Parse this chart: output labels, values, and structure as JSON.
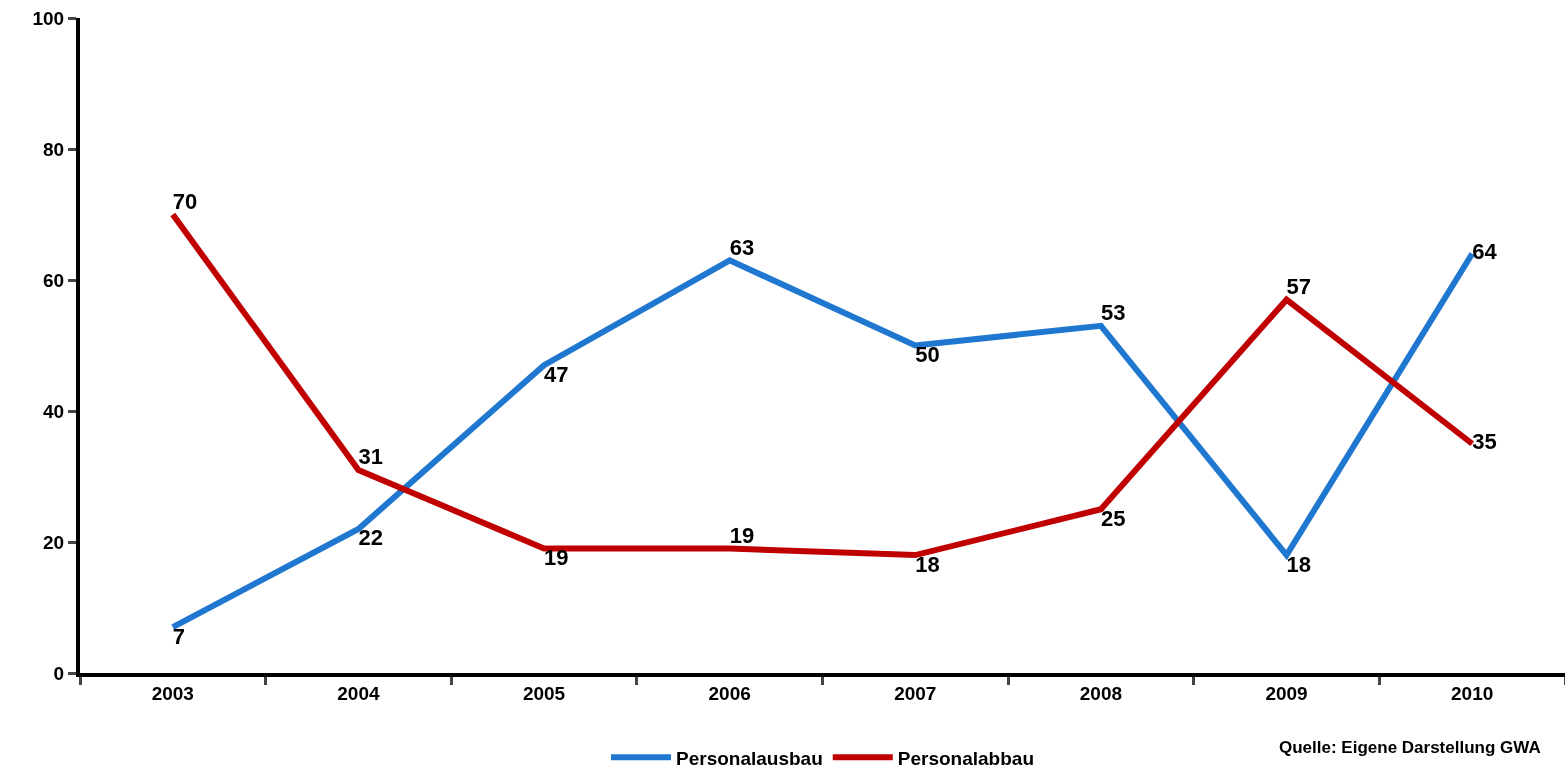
{
  "chart_data": {
    "type": "line",
    "categories": [
      "2003",
      "2004",
      "2005",
      "2006",
      "2007",
      "2008",
      "2009",
      "2010"
    ],
    "series": [
      {
        "name": "Personalausbau",
        "color": "#1f77d0",
        "values": [
          7,
          22,
          47,
          63,
          50,
          53,
          18,
          64
        ]
      },
      {
        "name": "Personalabbau",
        "color": "#c00000",
        "values": [
          70,
          31,
          19,
          19,
          18,
          25,
          57,
          35
        ]
      }
    ],
    "ylim": [
      0,
      100
    ],
    "yticks": [
      0,
      20,
      40,
      60,
      80,
      100
    ],
    "grid": false,
    "legend": "bottom",
    "marker": "none",
    "line_style": "solid",
    "data_labels": true,
    "annotations": [
      "Quelle: Eigene Darstellung GWA"
    ]
  }
}
